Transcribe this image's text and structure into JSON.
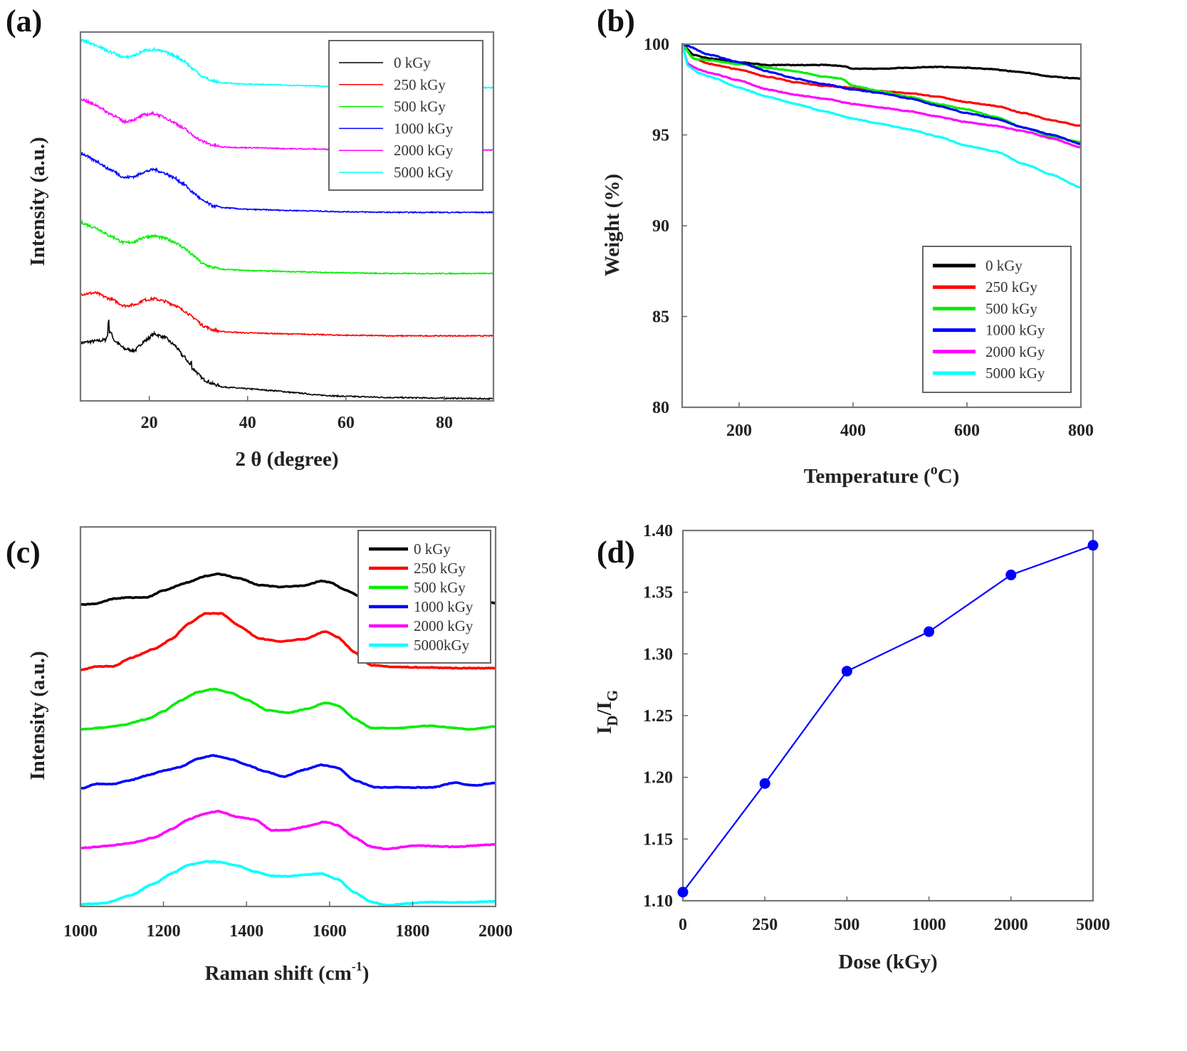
{
  "figure": {
    "panels": [
      "(a)",
      "(b)",
      "(c)",
      "(d)"
    ]
  },
  "colors": {
    "0 kGy": "#000000",
    "250 kGy": "#ff0000",
    "500 kGy": "#00ee00",
    "1000 kGy": "#0000ff",
    "2000 kGy": "#ff00ff",
    "5000 kGy": "#00ffff"
  },
  "chart_data": [
    {
      "id": "a",
      "panel_label": "(a)",
      "type": "line",
      "title": "",
      "xlabel": "2 θ (degree)",
      "ylabel": "Intensity (a.u.)",
      "xlim": [
        6,
        90
      ],
      "xticks": [
        20,
        40,
        60,
        80
      ],
      "yticks": [],
      "ylim": [
        0,
        6.2
      ],
      "grid": false,
      "legend_position": "top-right",
      "legend": [
        "0 kGy",
        "250 kGy",
        "500 kGy",
        "1000 kGy",
        "2000 kGy",
        "5000 kGy"
      ],
      "note": "XRD patterns, vertically offset (arbitrary units)",
      "series": [
        {
          "name": "0 kGy",
          "offset": 0.0,
          "x": [
            6,
            9,
            11,
            12,
            13,
            15,
            17,
            19,
            21,
            23,
            25,
            27,
            29,
            31,
            33,
            35,
            40,
            45,
            50,
            55,
            60,
            70,
            80,
            90
          ],
          "y": [
            0.95,
            0.98,
            1.0,
            1.15,
            0.98,
            0.85,
            0.82,
            0.98,
            1.1,
            1.05,
            0.92,
            0.72,
            0.5,
            0.33,
            0.25,
            0.2,
            0.17,
            0.14,
            0.1,
            0.06,
            0.04,
            0.02,
            0.01,
            0.0
          ]
        },
        {
          "name": "250 kGy",
          "offset": 1.0,
          "x": [
            6,
            9,
            12,
            15,
            17,
            19,
            21,
            23,
            25,
            27,
            29,
            31,
            33,
            35,
            40,
            50,
            60,
            70,
            80,
            90
          ],
          "y": [
            0.78,
            0.8,
            0.7,
            0.58,
            0.6,
            0.68,
            0.7,
            0.66,
            0.6,
            0.5,
            0.38,
            0.24,
            0.17,
            0.14,
            0.12,
            0.1,
            0.08,
            0.07,
            0.07,
            0.07
          ]
        },
        {
          "name": "500 kGy",
          "offset": 2.05,
          "x": [
            6,
            9,
            12,
            15,
            17,
            19,
            21,
            23,
            25,
            27,
            29,
            31,
            33,
            35,
            40,
            50,
            60,
            70,
            80,
            90
          ],
          "y": [
            0.95,
            0.86,
            0.72,
            0.6,
            0.62,
            0.7,
            0.72,
            0.68,
            0.62,
            0.52,
            0.38,
            0.24,
            0.18,
            0.15,
            0.13,
            0.11,
            0.09,
            0.08,
            0.08,
            0.08
          ]
        },
        {
          "name": "1000 kGy",
          "offset": 3.1,
          "x": [
            6,
            9,
            12,
            15,
            17,
            19,
            21,
            23,
            25,
            27,
            29,
            31,
            33,
            35,
            40,
            50,
            60,
            70,
            80,
            90
          ],
          "y": [
            1.08,
            0.95,
            0.8,
            0.66,
            0.68,
            0.76,
            0.8,
            0.74,
            0.66,
            0.55,
            0.4,
            0.26,
            0.18,
            0.15,
            0.12,
            0.1,
            0.08,
            0.07,
            0.07,
            0.07
          ]
        },
        {
          "name": "2000 kGy",
          "offset": 4.15,
          "x": [
            6,
            9,
            12,
            15,
            17,
            19,
            21,
            23,
            25,
            27,
            29,
            31,
            33,
            35,
            40,
            50,
            60,
            70,
            80,
            90
          ],
          "y": [
            0.95,
            0.85,
            0.7,
            0.56,
            0.6,
            0.68,
            0.7,
            0.64,
            0.55,
            0.45,
            0.32,
            0.22,
            0.16,
            0.13,
            0.12,
            0.1,
            0.09,
            0.08,
            0.08,
            0.08
          ]
        },
        {
          "name": "5000 kGy",
          "offset": 5.2,
          "x": [
            6,
            9,
            12,
            15,
            17,
            19,
            21,
            23,
            25,
            27,
            29,
            31,
            33,
            35,
            40,
            50,
            60,
            70,
            80,
            90
          ],
          "y": [
            0.9,
            0.82,
            0.7,
            0.6,
            0.64,
            0.72,
            0.74,
            0.7,
            0.64,
            0.55,
            0.4,
            0.27,
            0.2,
            0.17,
            0.15,
            0.13,
            0.1,
            0.09,
            0.09,
            0.09
          ]
        }
      ]
    },
    {
      "id": "b",
      "panel_label": "(b)",
      "type": "line",
      "title": "",
      "xlabel": "Temperature (°C)",
      "xlabel_main": "Temperature (",
      "xlabel_sup": "o",
      "xlabel_end": "C)",
      "ylabel": "Weight (%)",
      "xlim": [
        100,
        800
      ],
      "ylim": [
        80,
        100
      ],
      "xticks": [
        200,
        400,
        600,
        800
      ],
      "yticks": [
        80,
        85,
        90,
        95,
        100
      ],
      "grid": false,
      "legend_position": "bottom-right",
      "legend": [
        "0 kGy",
        "250 kGy",
        "500 kGy",
        "1000 kGy",
        "2000 kGy",
        "5000 kGy"
      ],
      "series": [
        {
          "name": "0 kGy",
          "x": [
            100,
            120,
            150,
            200,
            250,
            300,
            350,
            380,
            400,
            450,
            500,
            550,
            600,
            630,
            700,
            750,
            800
          ],
          "y": [
            100,
            99.4,
            99.2,
            99.0,
            98.85,
            98.85,
            98.85,
            98.8,
            98.65,
            98.65,
            98.7,
            98.75,
            98.7,
            98.65,
            98.45,
            98.2,
            98.1
          ]
        },
        {
          "name": "250 kGy",
          "x": [
            100,
            120,
            150,
            200,
            250,
            300,
            350,
            400,
            450,
            500,
            550,
            600,
            650,
            700,
            750,
            800
          ],
          "y": [
            100,
            99.2,
            98.9,
            98.6,
            98.2,
            97.9,
            97.7,
            97.6,
            97.4,
            97.3,
            97.1,
            96.8,
            96.6,
            96.2,
            95.8,
            95.5
          ]
        },
        {
          "name": "500 kGy",
          "x": [
            100,
            120,
            150,
            200,
            250,
            300,
            350,
            380,
            400,
            450,
            500,
            550,
            600,
            650,
            700,
            750,
            800
          ],
          "y": [
            100,
            99.2,
            99.1,
            98.9,
            98.7,
            98.5,
            98.2,
            98.1,
            97.7,
            97.4,
            97.1,
            96.7,
            96.4,
            96.0,
            95.4,
            94.9,
            94.6
          ]
        },
        {
          "name": "1000 kGy",
          "x": [
            100,
            150,
            200,
            250,
            300,
            350,
            400,
            450,
            500,
            550,
            600,
            650,
            700,
            750,
            800
          ],
          "y": [
            100,
            99.4,
            99.0,
            98.5,
            98.1,
            97.8,
            97.5,
            97.3,
            97.0,
            96.6,
            96.2,
            95.9,
            95.4,
            95.0,
            94.5
          ]
        },
        {
          "name": "2000 kGy",
          "x": [
            100,
            110,
            130,
            150,
            200,
            250,
            300,
            350,
            400,
            450,
            500,
            550,
            600,
            650,
            700,
            750,
            800
          ],
          "y": [
            100,
            98.9,
            98.6,
            98.4,
            98.0,
            97.5,
            97.2,
            97.0,
            96.7,
            96.5,
            96.3,
            96.0,
            95.7,
            95.5,
            95.2,
            94.8,
            94.3
          ]
        },
        {
          "name": "5000 kGy",
          "x": [
            100,
            110,
            130,
            150,
            200,
            250,
            300,
            350,
            400,
            450,
            500,
            550,
            600,
            650,
            700,
            750,
            800
          ],
          "y": [
            100,
            98.8,
            98.4,
            98.2,
            97.6,
            97.1,
            96.7,
            96.3,
            95.9,
            95.6,
            95.3,
            94.9,
            94.4,
            94.1,
            93.4,
            92.8,
            92.1
          ]
        }
      ]
    },
    {
      "id": "c",
      "panel_label": "(c)",
      "type": "line",
      "title": "",
      "xlabel": "Raman shift (cm⁻¹)",
      "xlabel_main": "Raman shift (cm",
      "xlabel_sup": "-1",
      "xlabel_end": ")",
      "ylabel": "Intensity (a.u.)",
      "xlim": [
        1000,
        2000
      ],
      "xticks": [
        1000,
        1200,
        1400,
        1600,
        1800,
        2000
      ],
      "yticks": [],
      "ylim": [
        0,
        6.3
      ],
      "grid": false,
      "legend_position": "top-right",
      "legend": [
        "0 kGy",
        "250 kGy",
        "500 kGy",
        "1000 kGy",
        "2000 kGy",
        "5000kGy"
      ],
      "note": "Raman spectra, vertically offset (arbitrary units)",
      "series": [
        {
          "name": "0 kGy",
          "offset": 5.05,
          "x": [
            1000,
            1040,
            1080,
            1110,
            1160,
            1200,
            1260,
            1300,
            1330,
            1380,
            1430,
            1480,
            1540,
            1580,
            1600,
            1640,
            1680,
            1720,
            1800,
            1900,
            2000
          ],
          "y": [
            0.0,
            0.02,
            0.1,
            0.12,
            0.12,
            0.24,
            0.38,
            0.48,
            0.52,
            0.45,
            0.33,
            0.3,
            0.32,
            0.4,
            0.38,
            0.24,
            0.12,
            0.06,
            0.04,
            0.04,
            0.03
          ]
        },
        {
          "name": "250 kGy",
          "offset": 3.95,
          "x": [
            1000,
            1040,
            1080,
            1120,
            1180,
            1220,
            1260,
            1300,
            1340,
            1380,
            1430,
            1480,
            1540,
            1590,
            1620,
            1660,
            1700,
            1760,
            1840,
            1920,
            2000
          ],
          "y": [
            0.0,
            0.06,
            0.06,
            0.2,
            0.36,
            0.52,
            0.78,
            0.95,
            0.95,
            0.75,
            0.53,
            0.48,
            0.52,
            0.65,
            0.55,
            0.3,
            0.08,
            0.05,
            0.04,
            0.03,
            0.03
          ]
        },
        {
          "name": "500 kGy",
          "offset": 2.95,
          "x": [
            1000,
            1060,
            1100,
            1160,
            1200,
            1240,
            1280,
            1320,
            1360,
            1400,
            1450,
            1500,
            1550,
            1590,
            1620,
            1660,
            1700,
            1760,
            1840,
            1940,
            2000
          ],
          "y": [
            0.0,
            0.03,
            0.07,
            0.17,
            0.3,
            0.48,
            0.62,
            0.68,
            0.62,
            0.5,
            0.32,
            0.28,
            0.35,
            0.45,
            0.4,
            0.18,
            0.02,
            0.02,
            0.06,
            0.0,
            0.05
          ]
        },
        {
          "name": "1000 kGy",
          "offset": 1.95,
          "x": [
            1000,
            1040,
            1080,
            1120,
            1160,
            1200,
            1240,
            1280,
            1320,
            1360,
            1400,
            1440,
            1490,
            1540,
            1580,
            1620,
            1660,
            1710,
            1760,
            1850,
            1900,
            1950,
            2000
          ],
          "y": [
            0.0,
            0.08,
            0.08,
            0.14,
            0.22,
            0.3,
            0.36,
            0.5,
            0.56,
            0.5,
            0.4,
            0.3,
            0.2,
            0.32,
            0.4,
            0.35,
            0.14,
            0.02,
            0.02,
            0.02,
            0.1,
            0.05,
            0.1
          ]
        },
        {
          "name": "2000 kGy",
          "offset": 0.95,
          "x": [
            1000,
            1060,
            1120,
            1180,
            1220,
            1260,
            1300,
            1330,
            1380,
            1420,
            1460,
            1500,
            1540,
            1590,
            1620,
            1660,
            1700,
            1740,
            1800,
            1900,
            2000
          ],
          "y": [
            0.0,
            0.03,
            0.08,
            0.18,
            0.32,
            0.48,
            0.58,
            0.62,
            0.52,
            0.48,
            0.3,
            0.3,
            0.36,
            0.44,
            0.38,
            0.18,
            0.02,
            -0.02,
            0.04,
            0.02,
            0.06
          ]
        },
        {
          "name": "5000kGy",
          "offset": 0.0,
          "x": [
            1000,
            1060,
            1120,
            1180,
            1220,
            1260,
            1300,
            1330,
            1380,
            1420,
            1460,
            1500,
            1540,
            1580,
            1620,
            1660,
            1700,
            1740,
            1780,
            1840,
            1900,
            2000
          ],
          "y": [
            0.0,
            0.02,
            0.15,
            0.36,
            0.52,
            0.66,
            0.72,
            0.72,
            0.65,
            0.55,
            0.48,
            0.47,
            0.5,
            0.52,
            0.42,
            0.2,
            0.04,
            -0.02,
            0.01,
            0.04,
            0.03,
            0.05
          ]
        }
      ]
    },
    {
      "id": "d",
      "panel_label": "(d)",
      "type": "line",
      "title": "",
      "xlabel": "Dose (kGy)",
      "ylabel": "ID/IG",
      "ylabel_main": "I",
      "ylabel_sub1": "D",
      "ylabel_mid": "/I",
      "ylabel_sub2": "G",
      "categories": [
        "0",
        "250",
        "500",
        "1000",
        "2000",
        "5000"
      ],
      "ylim": [
        1.1,
        1.4
      ],
      "yticks": [
        "1.10",
        "1.15",
        "1.20",
        "1.25",
        "1.30",
        "1.35",
        "1.40"
      ],
      "grid": false,
      "marker": "circle",
      "series": [
        {
          "name": "ID/IG",
          "values": [
            1.107,
            1.195,
            1.286,
            1.318,
            1.364,
            1.388
          ]
        }
      ]
    }
  ]
}
